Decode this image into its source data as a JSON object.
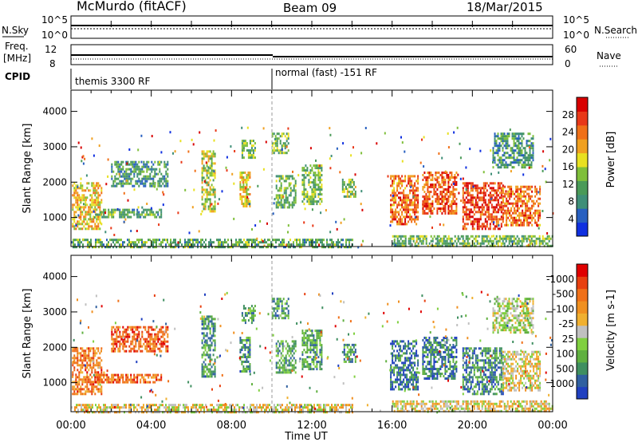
{
  "header": {
    "station": "McMurdo (fitACF)",
    "beam": "Beam 09",
    "date": "18/Mar/2015"
  },
  "summary_panels": {
    "nsky": {
      "label": "N.Sky",
      "ticks": [
        "10^5",
        "10^0"
      ]
    },
    "nsearch": {
      "label": "N.Search",
      "ticks": [
        "10^5",
        "10^0"
      ]
    },
    "freq": {
      "label_line1": "Freq.",
      "label_line2": "[MHz]",
      "ticks": [
        "12",
        "8"
      ]
    },
    "nave": {
      "label": "Nave",
      "ticks": [
        "60",
        "0"
      ]
    },
    "cpid": {
      "label": "CPID",
      "modes": [
        "themis 3300 RF",
        "normal (fast) -151 RF"
      ]
    }
  },
  "chart_data": [
    {
      "type": "heatmap",
      "title": "",
      "xlabel": "Time UT",
      "ylabel": "Slant Range [km]",
      "xlim": [
        0,
        24
      ],
      "ylim": [
        180,
        4600
      ],
      "x_ticks": [
        "00:00",
        "04:00",
        "08:00",
        "12:00",
        "16:00",
        "20:00",
        "00:00"
      ],
      "y_ticks": [
        1000,
        2000,
        3000,
        4000
      ],
      "colorbar": {
        "label": "Power [dB]",
        "ticks": [
          4,
          8,
          12,
          16,
          20,
          24,
          28
        ],
        "colors": [
          "#1030e0",
          "#2860c0",
          "#3f8f78",
          "#4a9a58",
          "#7fbf3a",
          "#e8e020",
          "#f0a020",
          "#f07018",
          "#e83818",
          "#d80000"
        ]
      },
      "echo_regions": [
        {
          "t_start": 0.05,
          "t_end": 1.5,
          "r_low": 700,
          "r_high": 2000,
          "level": 0.6
        },
        {
          "t_start": 1.2,
          "t_end": 4.5,
          "r_low": 1000,
          "r_high": 1250,
          "level": 0.35
        },
        {
          "t_start": 2.0,
          "t_end": 4.8,
          "r_low": 1900,
          "r_high": 2600,
          "level": 0.3
        },
        {
          "t_start": 6.5,
          "t_end": 7.2,
          "r_low": 1200,
          "r_high": 2900,
          "level": 0.5
        },
        {
          "t_start": 8.4,
          "t_end": 8.9,
          "r_low": 1300,
          "r_high": 2300,
          "level": 0.55
        },
        {
          "t_start": 8.5,
          "t_end": 9.2,
          "r_low": 2700,
          "r_high": 3200,
          "level": 0.4
        },
        {
          "t_start": 10.0,
          "t_end": 10.8,
          "r_low": 2800,
          "r_high": 3400,
          "level": 0.4
        },
        {
          "t_start": 10.2,
          "t_end": 11.2,
          "r_low": 1300,
          "r_high": 2200,
          "level": 0.35
        },
        {
          "t_start": 11.5,
          "t_end": 12.5,
          "r_low": 1400,
          "r_high": 2500,
          "level": 0.4
        },
        {
          "t_start": 13.5,
          "t_end": 14.2,
          "r_low": 1600,
          "r_high": 2100,
          "level": 0.45
        },
        {
          "t_start": 15.9,
          "t_end": 17.3,
          "r_low": 800,
          "r_high": 2200,
          "level": 0.75
        },
        {
          "t_start": 17.5,
          "t_end": 19.2,
          "r_low": 1100,
          "r_high": 2300,
          "level": 0.8
        },
        {
          "t_start": 19.5,
          "t_end": 21.5,
          "r_low": 700,
          "r_high": 2000,
          "level": 0.85
        },
        {
          "t_start": 21.5,
          "t_end": 23.4,
          "r_low": 800,
          "r_high": 1900,
          "level": 0.75
        },
        {
          "t_start": 21.0,
          "t_end": 23.0,
          "r_low": 2400,
          "r_high": 3400,
          "level": 0.3
        },
        {
          "t_start": 16.0,
          "t_end": 24.0,
          "r_low": 200,
          "r_high": 500,
          "level": 0.4
        },
        {
          "t_start": 0.0,
          "t_end": 14.0,
          "r_low": 180,
          "r_high": 400,
          "level": 0.35
        }
      ]
    },
    {
      "type": "heatmap",
      "title": "",
      "xlabel": "Time UT",
      "ylabel": "Slant Range [km]",
      "xlim": [
        0,
        24
      ],
      "ylim": [
        180,
        4600
      ],
      "x_ticks": [
        "00:00",
        "04:00",
        "08:00",
        "12:00",
        "16:00",
        "20:00",
        "00:00"
      ],
      "y_ticks": [
        1000,
        2000,
        3000,
        4000
      ],
      "colorbar": {
        "label": "Velocity [m s-1]",
        "ticks": [
          "1000",
          "500",
          "100",
          "25",
          "-25",
          "-100",
          "-500",
          "-1000"
        ],
        "colors": [
          "#2040c0",
          "#3060a0",
          "#3f8f60",
          "#60b040",
          "#80d040",
          "#c0c0c0",
          "#f0b030",
          "#f09020",
          "#f07018",
          "#e84010",
          "#e00000"
        ]
      },
      "echo_regions": [
        {
          "t_start": 0.05,
          "t_end": 1.5,
          "r_low": 700,
          "r_high": 2000,
          "level": 0.75
        },
        {
          "t_start": 1.2,
          "t_end": 4.5,
          "r_low": 1000,
          "r_high": 1250,
          "level": 0.78
        },
        {
          "t_start": 2.0,
          "t_end": 4.8,
          "r_low": 1900,
          "r_high": 2600,
          "level": 0.8
        },
        {
          "t_start": 6.5,
          "t_end": 7.2,
          "r_low": 1200,
          "r_high": 2900,
          "level": 0.25
        },
        {
          "t_start": 8.4,
          "t_end": 8.9,
          "r_low": 1300,
          "r_high": 2300,
          "level": 0.25
        },
        {
          "t_start": 8.5,
          "t_end": 9.2,
          "r_low": 2700,
          "r_high": 3200,
          "level": 0.3
        },
        {
          "t_start": 10.0,
          "t_end": 10.8,
          "r_low": 2800,
          "r_high": 3400,
          "level": 0.25
        },
        {
          "t_start": 10.2,
          "t_end": 11.2,
          "r_low": 1300,
          "r_high": 2200,
          "level": 0.3
        },
        {
          "t_start": 11.5,
          "t_end": 12.5,
          "r_low": 1400,
          "r_high": 2500,
          "level": 0.28
        },
        {
          "t_start": 13.5,
          "t_end": 14.2,
          "r_low": 1600,
          "r_high": 2100,
          "level": 0.25
        },
        {
          "t_start": 15.9,
          "t_end": 17.3,
          "r_low": 800,
          "r_high": 2200,
          "level": 0.15
        },
        {
          "t_start": 17.5,
          "t_end": 19.2,
          "r_low": 1100,
          "r_high": 2300,
          "level": 0.18
        },
        {
          "t_start": 19.5,
          "t_end": 21.5,
          "r_low": 700,
          "r_high": 2000,
          "level": 0.22
        },
        {
          "t_start": 21.5,
          "t_end": 23.4,
          "r_low": 800,
          "r_high": 1900,
          "level": 0.55
        },
        {
          "t_start": 21.0,
          "t_end": 23.0,
          "r_low": 2400,
          "r_high": 3400,
          "level": 0.45
        },
        {
          "t_start": 16.0,
          "t_end": 24.0,
          "r_low": 200,
          "r_high": 500,
          "level": 0.55
        },
        {
          "t_start": 0.0,
          "t_end": 14.0,
          "r_low": 180,
          "r_high": 400,
          "level": 0.55
        }
      ]
    }
  ]
}
